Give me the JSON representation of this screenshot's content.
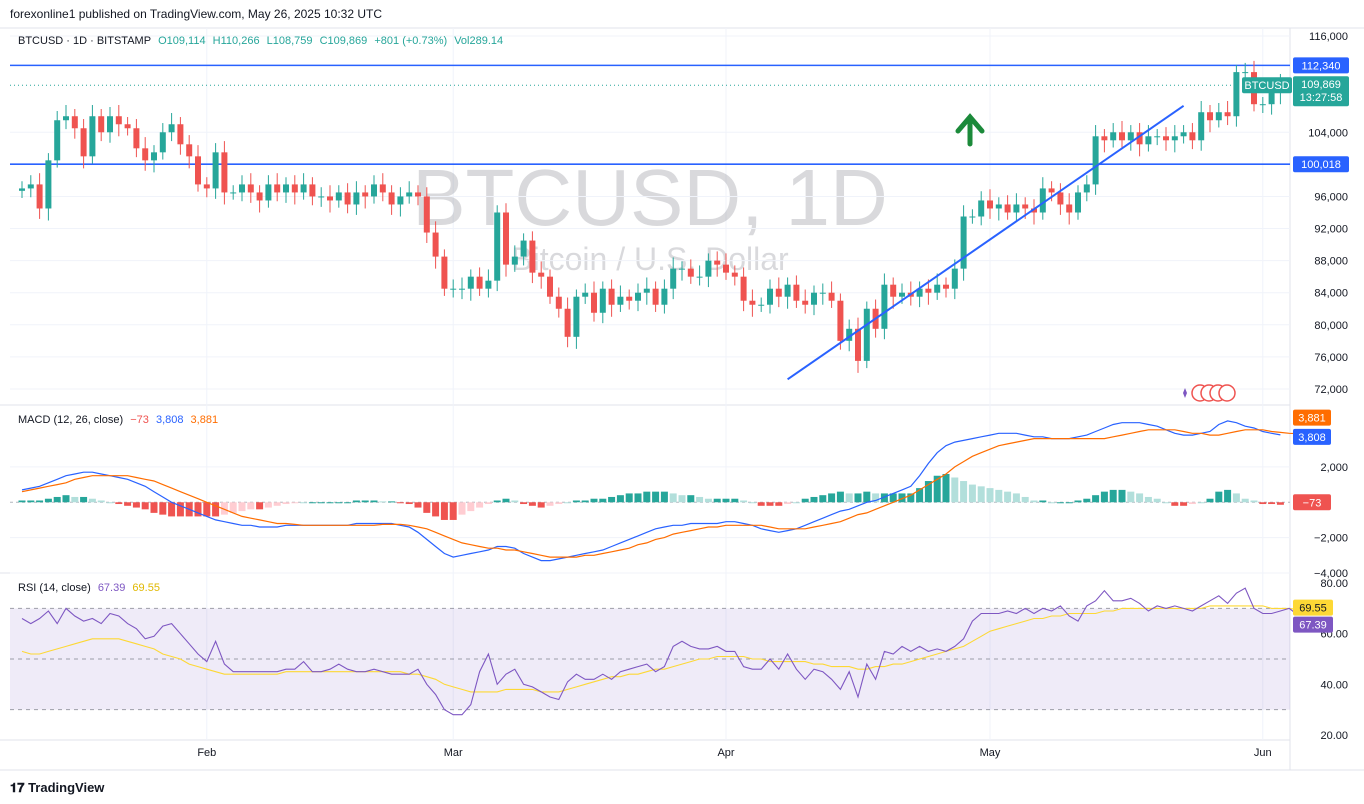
{
  "publisher": "forexonline1 published on TradingView.com, May 26, 2025 10:32 UTC",
  "legend_main": {
    "symbol": "BTCUSD · 1D · BITSTAMP",
    "open": "O109,114",
    "high": "H110,266",
    "low": "L108,759",
    "close": "C109,869",
    "change": "+801 (+0.73%)",
    "volume": "Vol289.14"
  },
  "legend_macd": {
    "label": "MACD (12, 26, close)",
    "hist": "−73",
    "macd": "3,808",
    "signal": "3,881"
  },
  "legend_rsi": {
    "label": "RSI (14, close)",
    "rsi": "67.39",
    "ma": "69.55"
  },
  "watermark": {
    "title": "BTCUSD, 1D",
    "subtitle": "Bitcoin / U.S. Dollar"
  },
  "footer": "TradingView",
  "colors": {
    "up": "#26a69a",
    "down": "#ef5350",
    "line": "#2962ff",
    "signal": "#ff6d00",
    "rsi": "#7e57c2",
    "rsi_ma": "#fdd835"
  },
  "chart_data": [
    {
      "type": "candlestick",
      "name": "BTCUSD",
      "ylim": [
        70000,
        117000
      ],
      "y_ticks": [
        "116,000",
        "104,000",
        "96,000",
        "92,000",
        "88,000",
        "84,000",
        "80,000",
        "76,000",
        "72,000"
      ],
      "y_tick_values": [
        116000,
        104000,
        96000,
        92000,
        88000,
        84000,
        80000,
        76000,
        72000
      ],
      "x_labels": [
        "Feb",
        "Mar",
        "Apr",
        "May",
        "Jun"
      ],
      "x_label_dates": [
        "2025-02-01",
        "2025-03-01",
        "2025-04-01",
        "2025-05-01",
        "2025-06-01"
      ],
      "start_date": "2025-01-11",
      "closes": [
        97000,
        97500,
        94500,
        100500,
        105500,
        106000,
        104500,
        101000,
        106000,
        104000,
        106000,
        105000,
        104500,
        102000,
        100500,
        101500,
        104000,
        105000,
        102500,
        101000,
        97500,
        97000,
        101500,
        96500,
        96500,
        97500,
        96500,
        95500,
        97500,
        96500,
        97500,
        96500,
        97500,
        96000,
        96000,
        95500,
        96500,
        95000,
        96500,
        96000,
        97500,
        96500,
        95000,
        96000,
        96500,
        96000,
        91500,
        88500,
        84500,
        84500,
        84500,
        86000,
        84500,
        85500,
        94000,
        87500,
        88500,
        90500,
        86500,
        86000,
        83500,
        82000,
        78500,
        83500,
        84000,
        81500,
        84500,
        82500,
        83500,
        83000,
        84000,
        84500,
        82500,
        84500,
        87000,
        87000,
        86000,
        86000,
        88000,
        87500,
        86500,
        86000,
        83000,
        82500,
        82500,
        84500,
        83500,
        85000,
        83000,
        82500,
        84000,
        84000,
        83000,
        78000,
        79500,
        75500,
        82000,
        79500,
        85000,
        83500,
        84000,
        83500,
        84500,
        84000,
        85000,
        84500,
        87000,
        93500,
        93500,
        95500,
        94500,
        95000,
        94000,
        95000,
        94500,
        94000,
        97000,
        96500,
        95000,
        94000,
        96500,
        97500,
        103500,
        103000,
        104000,
        103000,
        104000,
        102500,
        103500,
        103500,
        103000,
        103500,
        104000,
        103000,
        106500,
        105500,
        106500,
        106000,
        111500,
        111500,
        107500,
        107500,
        109000,
        109869
      ],
      "resistance_levels": [
        {
          "value": 112340,
          "label": "112,340"
        },
        {
          "value": 100018,
          "label": "100,018"
        }
      ],
      "last_price": {
        "label": "BTCUSD",
        "value": "109,869",
        "countdown": "13:27:58"
      },
      "trendline": {
        "from_date": "2025-04-08",
        "from_value": 73200,
        "to_date": "2025-05-23",
        "to_value": 107300
      }
    },
    {
      "type": "macd",
      "ylim": [
        -4000,
        5500
      ],
      "y_ticks": [
        "2,000",
        "−2,000",
        "−4,000"
      ],
      "y_tick_values": [
        2000,
        -2000,
        -4000
      ],
      "macd": [
        700,
        800,
        900,
        1100,
        1300,
        1500,
        1600,
        1700,
        1700,
        1600,
        1500,
        1400,
        1300,
        1100,
        900,
        600,
        300,
        0,
        -200,
        -400,
        -600,
        -800,
        -1000,
        -1100,
        -1200,
        -1300,
        -1300,
        -1400,
        -1400,
        -1400,
        -1300,
        -1300,
        -1300,
        -1300,
        -1300,
        -1300,
        -1300,
        -1300,
        -1200,
        -1200,
        -1200,
        -1200,
        -1200,
        -1300,
        -1400,
        -1700,
        -2100,
        -2500,
        -2900,
        -3100,
        -3000,
        -2900,
        -2800,
        -2700,
        -2500,
        -2500,
        -2600,
        -2900,
        -3100,
        -3300,
        -3300,
        -3200,
        -3100,
        -3000,
        -2900,
        -2800,
        -2700,
        -2500,
        -2300,
        -2100,
        -1900,
        -1700,
        -1500,
        -1400,
        -1300,
        -1300,
        -1200,
        -1200,
        -1200,
        -1200,
        -1100,
        -1100,
        -1200,
        -1300,
        -1500,
        -1600,
        -1700,
        -1600,
        -1500,
        -1300,
        -1100,
        -900,
        -700,
        -500,
        -400,
        -200,
        0,
        100,
        300,
        500,
        700,
        900,
        1500,
        2200,
        2800,
        3200,
        3400,
        3500,
        3600,
        3700,
        3800,
        3900,
        3900,
        3900,
        3800,
        3700,
        3700,
        3600,
        3600,
        3600,
        3700,
        3800,
        4000,
        4200,
        4400,
        4500,
        4500,
        4500,
        4400,
        4300,
        4100,
        3900,
        3800,
        3800,
        3900,
        4000,
        4400,
        4600,
        4500,
        4300,
        4200,
        4000,
        3900,
        3808
      ],
      "signal": [
        600,
        700,
        800,
        900,
        1000,
        1100,
        1300,
        1400,
        1500,
        1500,
        1500,
        1500,
        1500,
        1400,
        1300,
        1200,
        1000,
        800,
        600,
        400,
        200,
        0,
        -200,
        -400,
        -600,
        -800,
        -900,
        -1000,
        -1100,
        -1200,
        -1200,
        -1250,
        -1300,
        -1300,
        -1300,
        -1300,
        -1300,
        -1300,
        -1300,
        -1300,
        -1300,
        -1250,
        -1250,
        -1250,
        -1300,
        -1400,
        -1500,
        -1700,
        -1900,
        -2100,
        -2300,
        -2400,
        -2500,
        -2600,
        -2600,
        -2700,
        -2700,
        -2800,
        -2900,
        -3000,
        -3100,
        -3100,
        -3100,
        -3100,
        -3000,
        -3000,
        -2900,
        -2800,
        -2700,
        -2600,
        -2400,
        -2300,
        -2100,
        -2000,
        -1800,
        -1700,
        -1600,
        -1500,
        -1400,
        -1400,
        -1300,
        -1300,
        -1300,
        -1300,
        -1300,
        -1400,
        -1500,
        -1500,
        -1500,
        -1500,
        -1400,
        -1300,
        -1200,
        -1100,
        -900,
        -700,
        -600,
        -400,
        -200,
        0,
        200,
        400,
        700,
        1000,
        1300,
        1600,
        2000,
        2300,
        2600,
        2800,
        3000,
        3200,
        3300,
        3400,
        3500,
        3600,
        3600,
        3600,
        3600,
        3600,
        3600,
        3600,
        3600,
        3600,
        3700,
        3800,
        3900,
        4000,
        4100,
        4100,
        4100,
        4100,
        4000,
        3900,
        3900,
        3800,
        3800,
        3900,
        4000,
        4100,
        4100,
        4100,
        4000,
        3950,
        3900,
        3881
      ],
      "histogram_last": -73
    },
    {
      "type": "rsi",
      "ylim": [
        18,
        84
      ],
      "y_ticks": [
        "80.00",
        "60.00",
        "40.00",
        "20.00"
      ],
      "y_tick_values": [
        80,
        60,
        40,
        20
      ],
      "bands": [
        30,
        50,
        70
      ],
      "rsi": [
        66,
        64,
        66,
        69,
        64,
        70,
        67,
        65,
        66,
        64,
        68,
        67,
        64,
        62,
        58,
        59,
        63,
        64,
        60,
        56,
        52,
        49,
        57,
        48,
        45,
        45,
        45,
        45,
        45,
        45,
        46,
        46,
        49,
        45,
        45,
        46,
        48,
        46,
        45,
        45,
        46,
        45,
        44,
        44,
        44,
        46,
        40,
        36,
        30,
        28,
        28,
        32,
        45,
        52,
        40,
        44,
        46,
        40,
        39,
        37,
        35,
        34,
        41,
        44,
        42,
        42,
        44,
        42,
        45,
        46,
        47,
        48,
        45,
        47,
        55,
        57,
        55,
        54,
        54,
        55,
        53,
        53,
        47,
        46,
        46,
        50,
        46,
        52,
        46,
        42,
        46,
        45,
        42,
        38,
        45,
        35,
        48,
        42,
        53,
        52,
        55,
        53,
        55,
        53,
        54,
        53,
        55,
        58,
        65,
        68,
        68,
        68,
        69,
        68,
        70,
        68,
        70,
        69,
        71,
        67,
        65,
        71,
        73,
        77,
        73,
        73,
        74,
        72,
        69,
        71,
        70,
        71,
        70,
        69,
        71,
        73,
        75,
        72,
        76,
        78,
        70,
        68,
        68,
        69,
        70,
        67.39
      ],
      "rsi_ma": [
        53,
        52,
        52,
        53,
        54,
        55,
        56,
        57,
        58,
        58,
        58,
        58,
        57,
        56,
        55,
        54,
        52,
        51,
        50,
        48,
        47,
        46,
        45,
        44,
        44,
        44,
        44,
        44,
        44,
        44,
        45,
        45,
        45,
        45,
        45,
        45,
        45,
        45,
        45,
        45,
        45,
        45,
        45,
        45,
        44,
        44,
        43,
        42,
        40,
        39,
        38,
        37,
        37,
        37,
        37,
        38,
        38,
        38,
        38,
        37,
        37,
        37,
        38,
        39,
        40,
        41,
        42,
        43,
        43,
        44,
        44,
        45,
        46,
        46,
        47,
        48,
        49,
        50,
        50,
        51,
        51,
        51,
        51,
        50,
        50,
        49,
        49,
        49,
        49,
        49,
        48,
        48,
        47,
        47,
        47,
        46,
        46,
        47,
        47,
        48,
        48,
        49,
        50,
        51,
        52,
        53,
        54,
        55,
        57,
        59,
        61,
        62,
        63,
        64,
        65,
        66,
        66,
        67,
        67,
        68,
        68,
        68,
        68,
        69,
        69,
        70,
        70,
        70,
        70,
        70,
        70,
        70,
        70,
        70,
        70,
        71,
        71,
        71,
        71,
        71,
        71,
        71,
        70,
        70,
        70,
        69.55
      ]
    }
  ]
}
